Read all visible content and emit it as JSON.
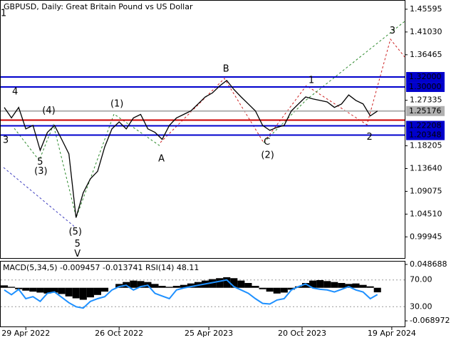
{
  "chart_data": [
    {
      "type": "line",
      "title": "GBPUSD, Daily:  Great Britain Pound vs US Dollar",
      "color": "#000000",
      "x": [
        0,
        1,
        2,
        3,
        4,
        5,
        6,
        7,
        8,
        9,
        10,
        11,
        12,
        13,
        14,
        15,
        16,
        17,
        18,
        19,
        20,
        21,
        22,
        23,
        24,
        25,
        26,
        27,
        28,
        29,
        30,
        31,
        32,
        33,
        34,
        35,
        36,
        37,
        38,
        39,
        40,
        41,
        42,
        43,
        44,
        45,
        46,
        47,
        48,
        49,
        50,
        51,
        52
      ],
      "values": [
        1.259,
        1.238,
        1.259,
        1.216,
        1.223,
        1.173,
        1.209,
        1.223,
        1.195,
        1.166,
        1.038,
        1.088,
        1.116,
        1.131,
        1.18,
        1.216,
        1.23,
        1.216,
        1.238,
        1.245,
        1.216,
        1.209,
        1.195,
        1.223,
        1.238,
        1.245,
        1.252,
        1.266,
        1.28,
        1.288,
        1.302,
        1.313,
        1.295,
        1.28,
        1.266,
        1.252,
        1.223,
        1.213,
        1.219,
        1.223,
        1.252,
        1.266,
        1.28,
        1.276,
        1.273,
        1.27,
        1.259,
        1.266,
        1.284,
        1.273,
        1.266,
        1.242,
        1.25176
      ],
      "xlim": [
        -0.5,
        55.8
      ],
      "xticks": [
        {
          "value": 3,
          "label": "29 Apr 2022"
        },
        {
          "value": 16,
          "label": "26 Oct 2022"
        },
        {
          "value": 28.5,
          "label": "25 Apr 2023"
        },
        {
          "value": 41.5,
          "label": "20 Oct 2023"
        },
        {
          "value": 54,
          "label": "19 Apr 2024"
        }
      ],
      "ylim": [
        0.957,
        1.473
      ],
      "yticks": [
        1.45595,
        {
          "value": 1.4103,
          "label": "1.41030"
        },
        1.36465,
        1.27335,
        1.18205,
        {
          "value": 1.1364,
          "label": "1.13640"
        },
        1.09075,
        {
          "value": 1.0451,
          "label": "1.04510"
        },
        0.99945
      ],
      "levels": [
        {
          "value": 1.32,
          "label": "1.32000",
          "color": "#0000cc"
        },
        {
          "value": 1.3,
          "label": "1.30000",
          "color": "#0000cc"
        },
        {
          "value": 1.2335,
          "color": "#cc0000"
        },
        {
          "value": 1.22208,
          "label": "1.22208",
          "color": "#0000cc"
        },
        {
          "value": 1.20348,
          "label": "1.20348",
          "color": "#0000cc"
        },
        {
          "value": 1.25176,
          "label": "1.25176",
          "color": "#b0b0b0"
        }
      ],
      "annotations": [
        {
          "text": "1",
          "x": -0.1,
          "y": 1.447,
          "color": "#a52a2a"
        },
        {
          "text": "4",
          "x": 1.5,
          "y": 1.29,
          "color": "#a52a2a"
        },
        {
          "text": "(4)",
          "x": 6.2,
          "y": 1.252,
          "color": "#2e8b2e"
        },
        {
          "text": "(1)",
          "x": 15.7,
          "y": 1.266,
          "color": "#2e8b2e"
        },
        {
          "text": "B",
          "x": 30.9,
          "y": 1.336,
          "color": "#a52a2a"
        },
        {
          "text": "1",
          "x": 42.8,
          "y": 1.313,
          "color": "#a52a2a"
        },
        {
          "text": "3",
          "x": 54.1,
          "y": 1.412,
          "color": "#a52a2a"
        },
        {
          "text": "3",
          "x": 0.2,
          "y": 1.193,
          "color": "#a52a2a"
        },
        {
          "text": "5",
          "x": 5,
          "y": 1.149,
          "color": "#a52a2a"
        },
        {
          "text": "(3)",
          "x": 5.1,
          "y": 1.131,
          "color": "#2e8b2e"
        },
        {
          "text": "A",
          "x": 21.9,
          "y": 1.156,
          "color": "#a52a2a"
        },
        {
          "text": "(2)",
          "x": 36.7,
          "y": 1.163,
          "color": "#2e8b2e"
        },
        {
          "text": "C",
          "x": 36.6,
          "y": 1.189,
          "color": "#a52a2a"
        },
        {
          "text": "2",
          "x": 50.9,
          "y": 1.199,
          "color": "#a52a2a"
        },
        {
          "text": "(5)",
          "x": 9.9,
          "y": 1.0095,
          "color": "#2e8b2e"
        },
        {
          "text": "5",
          "x": 10.2,
          "y": 0.985,
          "color": "#5a2a8a"
        },
        {
          "text": "V",
          "x": 10.2,
          "y": 0.965,
          "color": "#a52a2a"
        }
      ]
    },
    {
      "type": "macd-rsi",
      "title": "MACD(5,34,5) -0.009457 -0.013741 RSI(14) 48.11",
      "x": [
        0,
        1,
        2,
        3,
        4,
        5,
        6,
        7,
        8,
        9,
        10,
        11,
        12,
        13,
        14,
        15,
        16,
        17,
        18,
        19,
        20,
        21,
        22,
        23,
        24,
        25,
        26,
        27,
        28,
        29,
        30,
        31,
        32,
        33,
        34,
        35,
        36,
        37,
        38,
        39,
        40,
        41,
        42,
        43,
        44,
        45,
        46,
        47,
        48,
        49,
        50,
        51,
        52
      ],
      "xlim": [
        -0.5,
        55.8
      ],
      "series": [
        {
          "type": "bar",
          "axis": "y2",
          "color": "#000000",
          "values": [
            0.005,
            0.002,
            -0.003,
            -0.006,
            -0.008,
            -0.01,
            -0.012,
            -0.01,
            -0.013,
            -0.018,
            -0.022,
            -0.025,
            -0.02,
            -0.015,
            -0.008,
            0.0,
            0.008,
            0.012,
            0.015,
            0.014,
            0.012,
            0.008,
            0.004,
            0.002,
            0.004,
            0.006,
            0.009,
            0.012,
            0.015,
            0.018,
            0.02,
            0.022,
            0.02,
            0.015,
            0.01,
            0.004,
            -0.003,
            -0.008,
            -0.012,
            -0.01,
            -0.004,
            0.003,
            0.01,
            0.015,
            0.016,
            0.014,
            0.012,
            0.01,
            0.008,
            0.009,
            0.006,
            0.003,
            -0.009457
          ]
        },
        {
          "type": "line",
          "color": "#1e90ff",
          "values": [
            55,
            48,
            56,
            42,
            45,
            38,
            50,
            52,
            44,
            36,
            30,
            28,
            38,
            42,
            45,
            55,
            60,
            62,
            55,
            60,
            62,
            50,
            46,
            42,
            55,
            58,
            60,
            62,
            64,
            66,
            68,
            70,
            60,
            55,
            50,
            42,
            35,
            34,
            40,
            42,
            55,
            60,
            64,
            58,
            56,
            55,
            52,
            56,
            60,
            55,
            52,
            42,
            48.11
          ]
        }
      ],
      "ylim": [
        0.5,
        97.4
      ],
      "yticks": [
        {
          "value": 70,
          "label": "70.00"
        },
        {
          "value": 30,
          "label": "30.00"
        }
      ],
      "y2lim": [
        -0.0807,
        0.0546
      ],
      "y2ticks": [
        0.048688,
        -0.068972
      ]
    }
  ]
}
